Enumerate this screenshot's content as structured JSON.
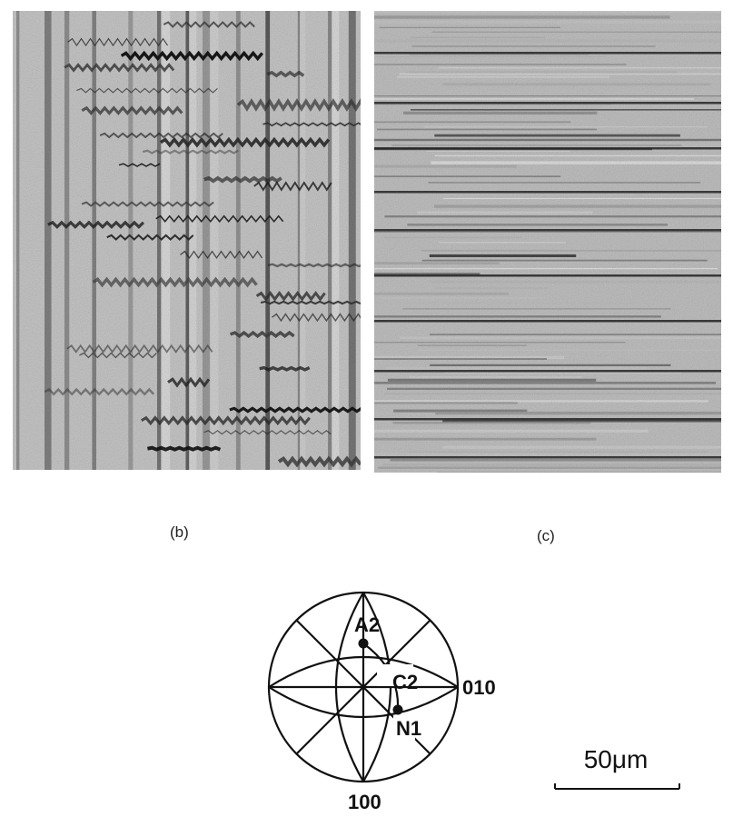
{
  "panels": [
    {
      "caption": "(b)",
      "stripe_direction": "vertical",
      "tone": "grey"
    },
    {
      "caption": "(c)",
      "stripe_direction": "horizontal",
      "tone": "grey"
    }
  ],
  "stereogram": {
    "pole_labels": {
      "a": "A2",
      "c": "C2",
      "n": "N1",
      "right": "010",
      "bottom": "100"
    }
  },
  "scale_bar": {
    "label": "50μm"
  },
  "colors": {
    "ink": "#111111",
    "paper": "#ffffff",
    "micrograph_base": "#bdbdbd"
  }
}
